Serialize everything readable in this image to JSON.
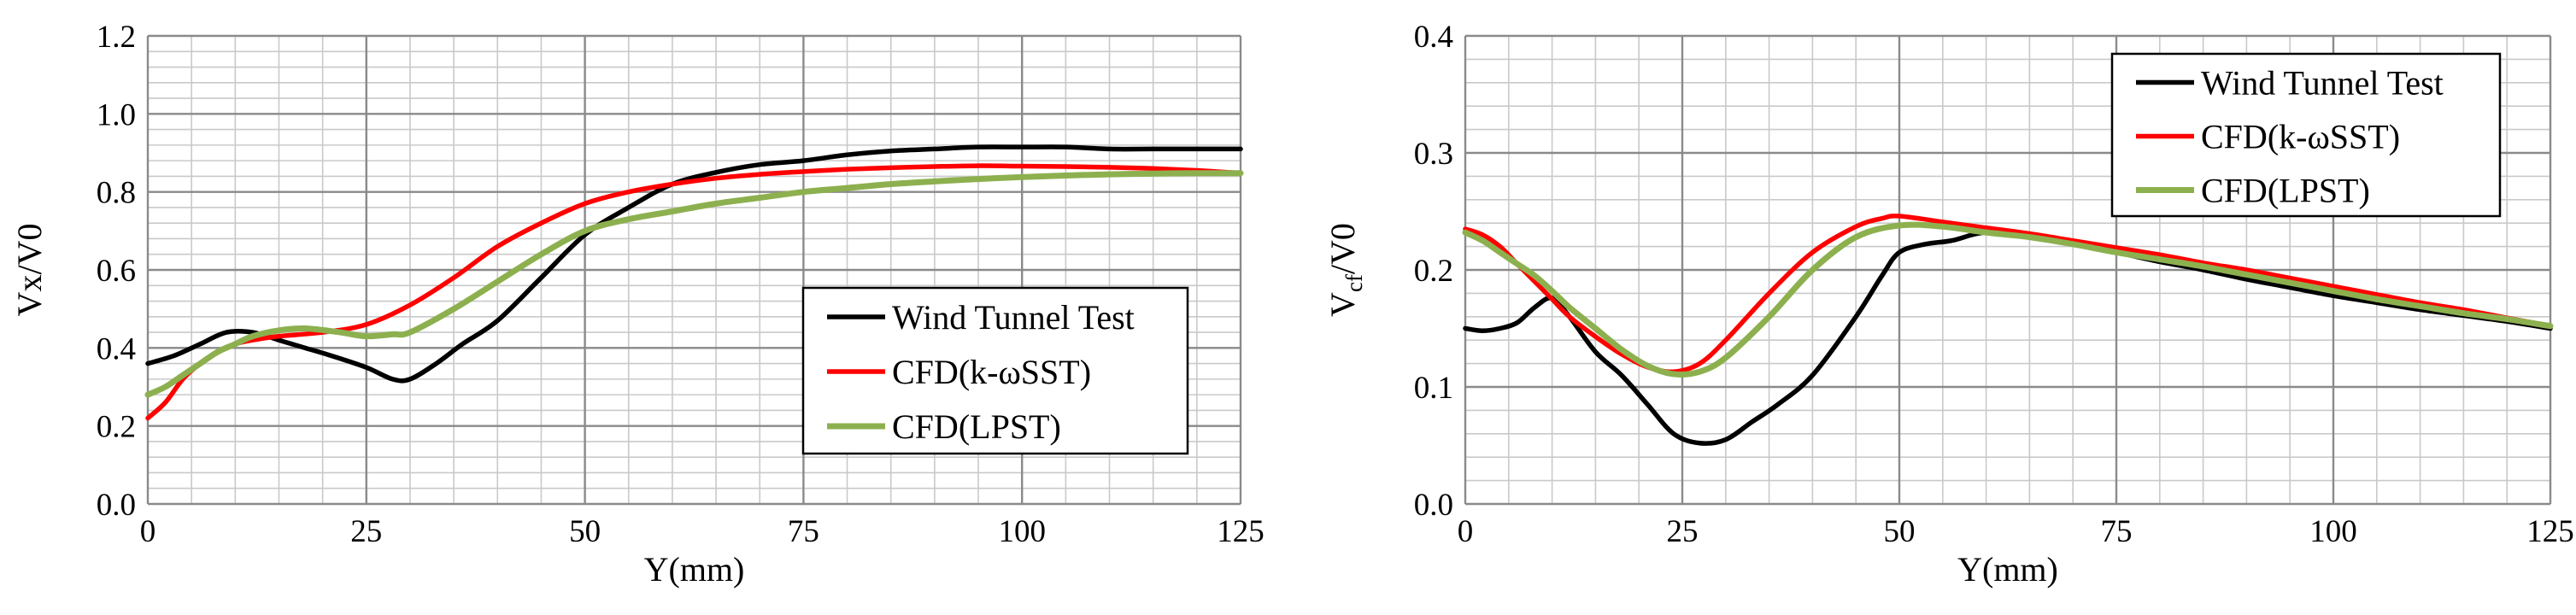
{
  "chart_data": [
    {
      "type": "line",
      "title": "",
      "xlabel": "Y(mm)",
      "ylabel": "Vx/V0",
      "xlim": [
        0,
        125
      ],
      "ylim": [
        0.0,
        1.2
      ],
      "xticks": [
        "0",
        "25",
        "50",
        "75",
        "100",
        "125"
      ],
      "yticks": [
        "0.0",
        "0.2",
        "0.4",
        "0.6",
        "0.8",
        "1.0",
        "1.2"
      ],
      "grid": true,
      "legend_position": "lower-right",
      "series": [
        {
          "name": "Wind Tunnel Test",
          "color": "#000000",
          "x": [
            0,
            3,
            6,
            9,
            12,
            15,
            18,
            21,
            25,
            28,
            30,
            33,
            36,
            40,
            45,
            50,
            55,
            60,
            65,
            70,
            75,
            80,
            85,
            90,
            95,
            100,
            105,
            110,
            115,
            120,
            125
          ],
          "y": [
            0.36,
            0.38,
            0.41,
            0.44,
            0.44,
            0.42,
            0.4,
            0.38,
            0.35,
            0.32,
            0.32,
            0.36,
            0.41,
            0.47,
            0.58,
            0.69,
            0.76,
            0.82,
            0.85,
            0.87,
            0.88,
            0.895,
            0.905,
            0.91,
            0.915,
            0.915,
            0.915,
            0.91,
            0.91,
            0.91,
            0.91
          ]
        },
        {
          "name": "CFD(k-ωSST)",
          "color": "#ff0000",
          "x": [
            0,
            2,
            4,
            6,
            8,
            10,
            12,
            15,
            20,
            25,
            30,
            35,
            40,
            45,
            50,
            55,
            60,
            65,
            70,
            75,
            80,
            85,
            90,
            95,
            100,
            105,
            110,
            115,
            120,
            125
          ],
          "y": [
            0.22,
            0.26,
            0.32,
            0.36,
            0.39,
            0.41,
            0.42,
            0.43,
            0.44,
            0.46,
            0.51,
            0.58,
            0.66,
            0.72,
            0.77,
            0.8,
            0.82,
            0.835,
            0.845,
            0.852,
            0.858,
            0.862,
            0.865,
            0.867,
            0.866,
            0.865,
            0.863,
            0.86,
            0.855,
            0.848
          ]
        },
        {
          "name": "CFD(LPST)",
          "color": "#8db04f",
          "x": [
            0,
            2,
            4,
            6,
            8,
            10,
            12,
            15,
            18,
            22,
            25,
            28,
            30,
            35,
            40,
            45,
            50,
            55,
            60,
            65,
            70,
            75,
            80,
            85,
            90,
            95,
            100,
            105,
            110,
            115,
            120,
            125
          ],
          "y": [
            0.28,
            0.3,
            0.33,
            0.36,
            0.39,
            0.41,
            0.43,
            0.445,
            0.45,
            0.44,
            0.43,
            0.435,
            0.44,
            0.5,
            0.57,
            0.64,
            0.7,
            0.73,
            0.75,
            0.77,
            0.785,
            0.8,
            0.81,
            0.82,
            0.827,
            0.833,
            0.838,
            0.842,
            0.845,
            0.847,
            0.848,
            0.848
          ]
        }
      ]
    },
    {
      "type": "line",
      "title": "",
      "xlabel": "Y(mm)",
      "ylabel": "Vcf/V0",
      "ylabel_main": "V",
      "ylabel_sub": "cf",
      "ylabel_rest": "/V0",
      "xlim": [
        0,
        125
      ],
      "ylim": [
        0.0,
        0.4
      ],
      "xticks": [
        "0",
        "25",
        "50",
        "75",
        "100",
        "125"
      ],
      "yticks": [
        "0.0",
        "0.1",
        "0.2",
        "0.3",
        "0.4"
      ],
      "grid": true,
      "legend_position": "top-right",
      "series": [
        {
          "name": "Wind Tunnel Test",
          "color": "#000000",
          "x": [
            0,
            2,
            4,
            6,
            8,
            10,
            12,
            15,
            18,
            21,
            24,
            27,
            30,
            33,
            36,
            40,
            45,
            48,
            50,
            53,
            56,
            60,
            65,
            70,
            75,
            80,
            85,
            90,
            95,
            100,
            105,
            110,
            115,
            120,
            125
          ],
          "y": [
            0.15,
            0.148,
            0.15,
            0.155,
            0.168,
            0.176,
            0.16,
            0.13,
            0.11,
            0.085,
            0.06,
            0.052,
            0.055,
            0.07,
            0.085,
            0.11,
            0.16,
            0.195,
            0.215,
            0.222,
            0.225,
            0.232,
            0.228,
            0.222,
            0.215,
            0.207,
            0.2,
            0.192,
            0.185,
            0.178,
            0.172,
            0.166,
            0.161,
            0.156,
            0.15
          ]
        },
        {
          "name": "CFD(k-ωSST)",
          "color": "#ff0000",
          "x": [
            0,
            2,
            4,
            6,
            8,
            10,
            12,
            15,
            18,
            21,
            24,
            27,
            30,
            35,
            40,
            45,
            48,
            50,
            55,
            60,
            65,
            70,
            75,
            80,
            85,
            90,
            95,
            100,
            105,
            110,
            115,
            120,
            125
          ],
          "y": [
            0.235,
            0.23,
            0.22,
            0.205,
            0.19,
            0.175,
            0.16,
            0.143,
            0.128,
            0.117,
            0.113,
            0.12,
            0.14,
            0.18,
            0.215,
            0.237,
            0.244,
            0.246,
            0.241,
            0.236,
            0.231,
            0.225,
            0.219,
            0.213,
            0.206,
            0.2,
            0.193,
            0.186,
            0.179,
            0.172,
            0.166,
            0.159,
            0.152
          ]
        },
        {
          "name": "CFD(LPST)",
          "color": "#8db04f",
          "x": [
            0,
            2,
            4,
            6,
            8,
            10,
            12,
            15,
            18,
            21,
            24,
            27,
            30,
            35,
            40,
            45,
            50,
            55,
            60,
            65,
            70,
            75,
            80,
            85,
            90,
            95,
            100,
            105,
            110,
            115,
            120,
            125
          ],
          "y": [
            0.232,
            0.225,
            0.215,
            0.205,
            0.195,
            0.182,
            0.168,
            0.15,
            0.132,
            0.118,
            0.111,
            0.113,
            0.125,
            0.16,
            0.2,
            0.228,
            0.238,
            0.237,
            0.232,
            0.228,
            0.222,
            0.215,
            0.209,
            0.203,
            0.196,
            0.189,
            0.182,
            0.175,
            0.169,
            0.163,
            0.158,
            0.152
          ]
        }
      ]
    }
  ]
}
